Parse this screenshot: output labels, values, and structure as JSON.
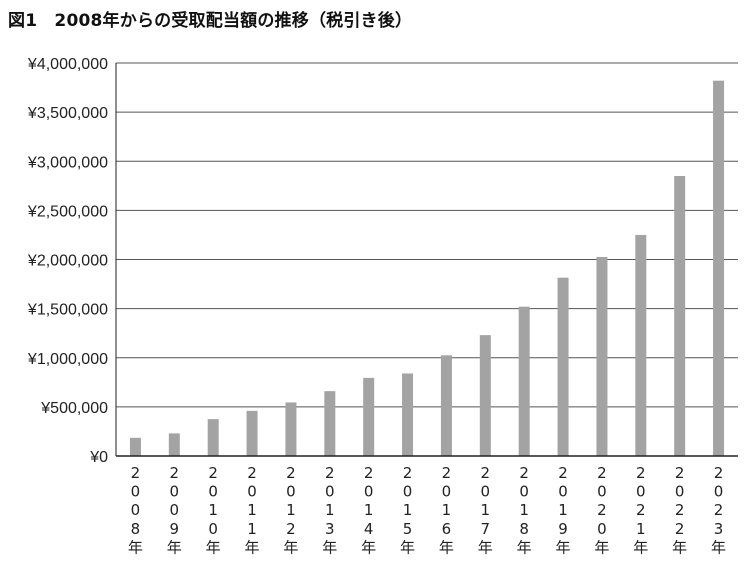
{
  "chart_data": {
    "type": "bar",
    "title": "図1　2008年からの受取配当額の推移（税引き後）",
    "xlabel": "",
    "ylabel": "",
    "categories": [
      "2008年",
      "2009年",
      "2010年",
      "2011年",
      "2012年",
      "2013年",
      "2014年",
      "2015年",
      "2016年",
      "2017年",
      "2018年",
      "2019年",
      "2020年",
      "2021年",
      "2022年",
      "2023年"
    ],
    "values": [
      185000,
      230000,
      375000,
      460000,
      545000,
      660000,
      795000,
      840000,
      1025000,
      1230000,
      1520000,
      1815000,
      2025000,
      2250000,
      2850000,
      3820000
    ],
    "ylim": [
      0,
      4000000
    ],
    "yticks": [
      0,
      500000,
      1000000,
      1500000,
      2000000,
      2500000,
      3000000,
      3500000,
      4000000
    ],
    "ytick_labels": [
      "¥0",
      "¥500,000",
      "¥1,000,000",
      "¥1,500,000",
      "¥2,000,000",
      "¥2,500,000",
      "¥3,000,000",
      "¥3,500,000",
      "¥4,000,000"
    ],
    "grid": true,
    "legend": "none",
    "colors": {
      "bar": "#a3a3a3",
      "grid": "#555555",
      "axis": "#222222",
      "text": "#222222"
    }
  }
}
